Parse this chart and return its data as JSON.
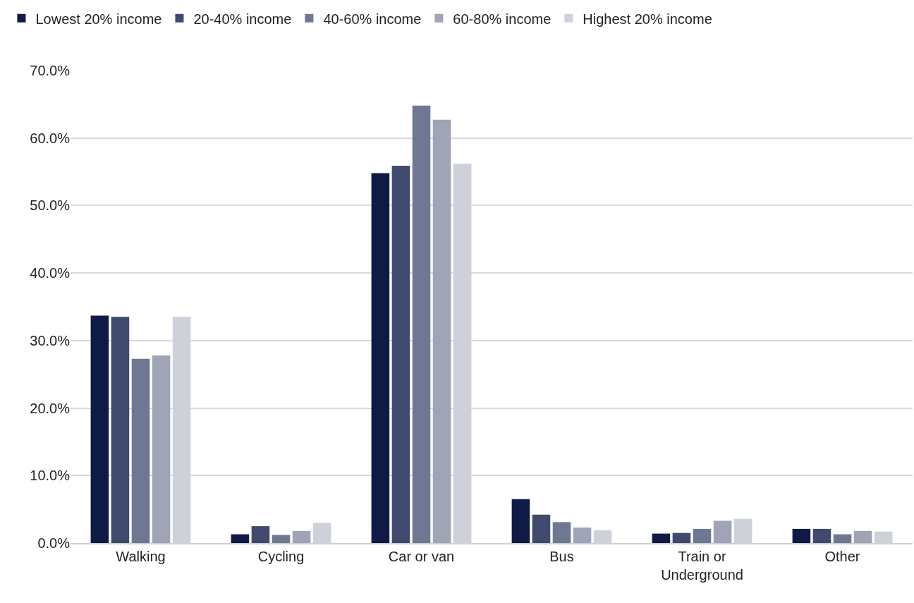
{
  "chart_data": {
    "type": "bar",
    "categories": [
      "Walking",
      "Cycling",
      "Car or van",
      "Bus",
      "Train or Underground",
      "Other"
    ],
    "series": [
      {
        "name": "Lowest 20% income",
        "color": "#101a47",
        "values": [
          33.7,
          1.3,
          54.8,
          6.5,
          1.4,
          2.1
        ]
      },
      {
        "name": "20-40% income",
        "color": "#3f4a6e",
        "values": [
          33.5,
          2.5,
          55.9,
          4.2,
          1.5,
          2.1
        ]
      },
      {
        "name": "40-60% income",
        "color": "#6e7892",
        "values": [
          27.3,
          1.2,
          64.8,
          3.1,
          2.1,
          1.3
        ]
      },
      {
        "name": "60-80% income",
        "color": "#9fa4b7",
        "values": [
          27.8,
          1.8,
          62.7,
          2.3,
          3.3,
          1.8
        ]
      },
      {
        "name": "Highest 20% income",
        "color": "#cfd1da",
        "values": [
          33.5,
          3.0,
          56.2,
          1.9,
          3.6,
          1.7
        ]
      }
    ],
    "ylim": [
      0,
      70
    ],
    "yticks": [
      {
        "value": 0,
        "label": "0.0%"
      },
      {
        "value": 10,
        "label": "10.0%"
      },
      {
        "value": 20,
        "label": "20.0%"
      },
      {
        "value": 30,
        "label": "30.0%"
      },
      {
        "value": 40,
        "label": "40.0%"
      },
      {
        "value": 50,
        "label": "50.0%"
      },
      {
        "value": 60,
        "label": "60.0%"
      },
      {
        "value": 70,
        "label": "70.0%"
      }
    ],
    "grid": "y",
    "legend": "top left"
  }
}
